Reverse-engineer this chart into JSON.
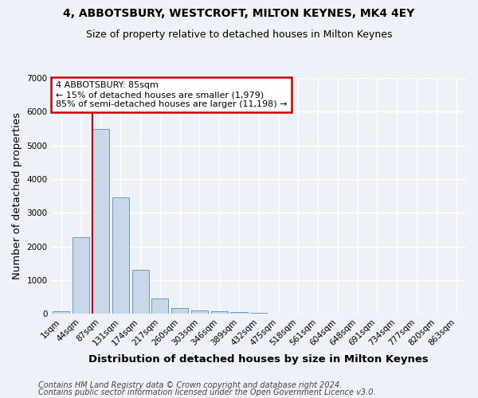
{
  "title": "4, ABBOTSBURY, WESTCROFT, MILTON KEYNES, MK4 4EY",
  "subtitle": "Size of property relative to detached houses in Milton Keynes",
  "xlabel": "Distribution of detached houses by size in Milton Keynes",
  "ylabel": "Number of detached properties",
  "footnote1": "Contains HM Land Registry data © Crown copyright and database right 2024.",
  "footnote2": "Contains public sector information licensed under the Open Government Licence v3.0.",
  "bar_labels": [
    "1sqm",
    "44sqm",
    "87sqm",
    "131sqm",
    "174sqm",
    "217sqm",
    "260sqm",
    "303sqm",
    "346sqm",
    "389sqm",
    "432sqm",
    "475sqm",
    "518sqm",
    "561sqm",
    "604sqm",
    "648sqm",
    "691sqm",
    "734sqm",
    "777sqm",
    "820sqm",
    "863sqm"
  ],
  "bar_values": [
    80,
    2280,
    5500,
    3450,
    1310,
    460,
    185,
    100,
    80,
    50,
    35,
    0,
    0,
    0,
    0,
    0,
    0,
    0,
    0,
    0,
    0
  ],
  "bar_color": "#c8d8e8",
  "bar_edge_color": "#6699bb",
  "red_line_index": 2,
  "red_line_color": "#cc0000",
  "annotation_title": "4 ABBOTSBURY: 85sqm",
  "annotation_line1": "← 15% of detached houses are smaller (1,979)",
  "annotation_line2": "85% of semi-detached houses are larger (11,198) →",
  "annotation_box_color": "#ffffff",
  "annotation_box_edge": "#cc0000",
  "ylim": [
    0,
    7000
  ],
  "background_color": "#eef2f8",
  "grid_color": "#ffffff",
  "title_fontsize": 10,
  "subtitle_fontsize": 9,
  "axis_label_fontsize": 9.5,
  "tick_fontsize": 7.5,
  "footnote_fontsize": 7
}
